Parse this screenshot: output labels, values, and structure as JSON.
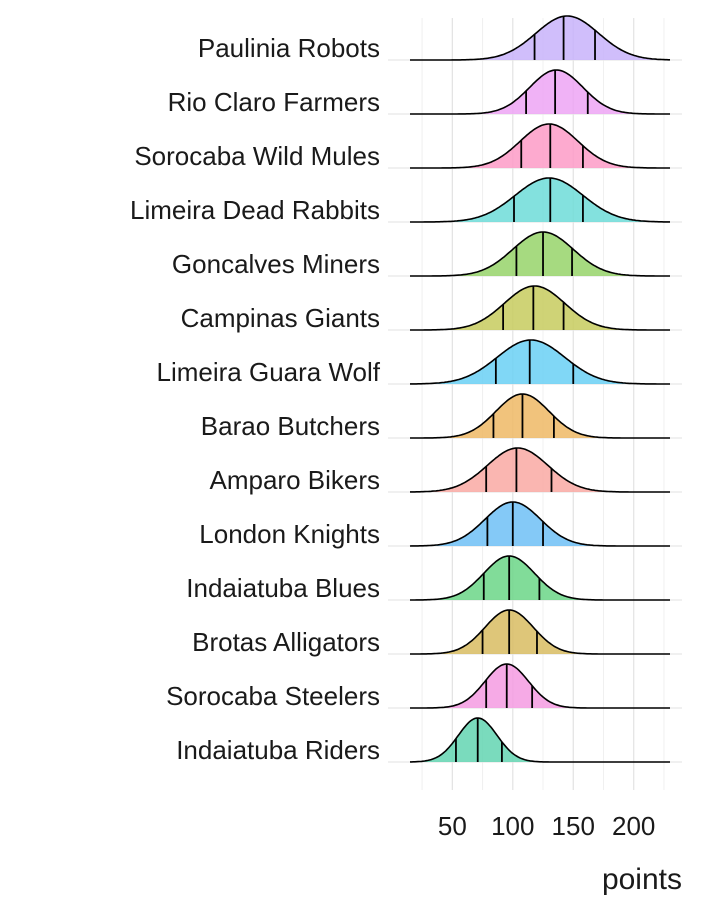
{
  "chart_data": {
    "type": "ridgeline",
    "xlabel": "points",
    "xlim": [
      15,
      230
    ],
    "x_ticks": [
      50,
      100,
      150,
      200
    ],
    "grid": true,
    "series": [
      {
        "name": "Paulinia Robots",
        "mean": 145,
        "sd": 26,
        "quartiles": [
          118,
          142,
          168
        ],
        "color": "#C8B3FA"
      },
      {
        "name": "Rio Claro Farmers",
        "mean": 136,
        "sd": 22,
        "quartiles": [
          111,
          135,
          162
        ],
        "color": "#EDA4F5"
      },
      {
        "name": "Sorocaba Wild Mules",
        "mean": 130,
        "sd": 24,
        "quartiles": [
          107,
          131,
          158
        ],
        "color": "#FD9BC7"
      },
      {
        "name": "Limeira Dead Rabbits",
        "mean": 130,
        "sd": 28,
        "quartiles": [
          101,
          131,
          158
        ],
        "color": "#6DDCD8"
      },
      {
        "name": "Goncalves Miners",
        "mean": 125,
        "sd": 25,
        "quartiles": [
          103,
          125,
          149
        ],
        "color": "#97D46A"
      },
      {
        "name": "Campinas Giants",
        "mean": 118,
        "sd": 25,
        "quartiles": [
          92,
          117,
          142
        ],
        "color": "#C7CB5E"
      },
      {
        "name": "Limeira Guara Wolf",
        "mean": 115,
        "sd": 28,
        "quartiles": [
          86,
          114,
          150
        ],
        "color": "#6AD0F5"
      },
      {
        "name": "Barao Butchers",
        "mean": 108,
        "sd": 22,
        "quartiles": [
          84,
          108,
          134
        ],
        "color": "#EEB865"
      },
      {
        "name": "Amparo Bikers",
        "mean": 104,
        "sd": 25,
        "quartiles": [
          78,
          103,
          132
        ],
        "color": "#F9A9A3"
      },
      {
        "name": "London Knights",
        "mean": 100,
        "sd": 23,
        "quartiles": [
          79,
          100,
          125
        ],
        "color": "#6FBFF6"
      },
      {
        "name": "Indaiatuba Blues",
        "mean": 97,
        "sd": 21,
        "quartiles": [
          76,
          97,
          122
        ],
        "color": "#6BD687"
      },
      {
        "name": "Brotas Alligators",
        "mean": 97,
        "sd": 20,
        "quartiles": [
          75,
          97,
          120
        ],
        "color": "#D8BC62"
      },
      {
        "name": "Sorocaba Steelers",
        "mean": 95,
        "sd": 18,
        "quartiles": [
          78,
          95,
          116
        ],
        "color": "#F49BE2"
      },
      {
        "name": "Indaiatuba Riders",
        "mean": 71,
        "sd": 16,
        "quartiles": [
          53,
          71,
          91
        ],
        "color": "#63D5B1"
      }
    ]
  }
}
